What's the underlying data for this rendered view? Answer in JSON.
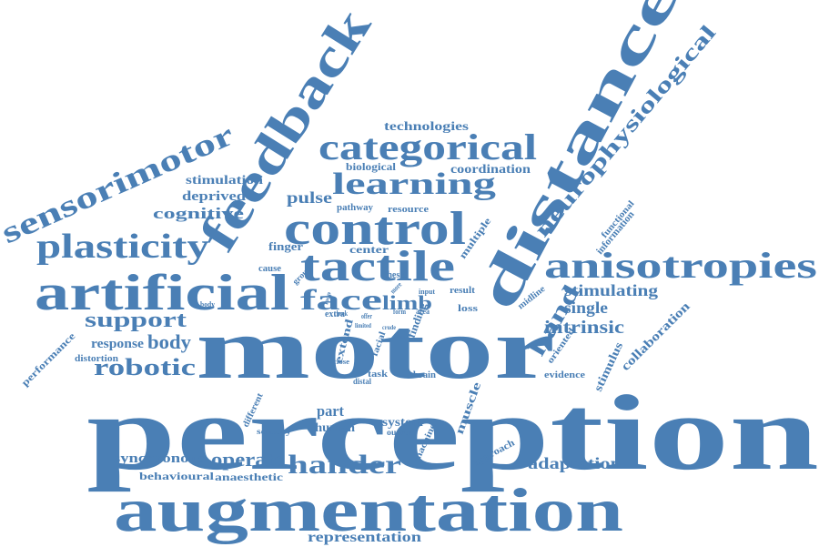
{
  "cloud": {
    "color": "#4a7fb5",
    "words": [
      "perception",
      "motor",
      "augmentation",
      "distance",
      "feedback",
      "control",
      "artificial",
      "tactile",
      "categorical",
      "anisotropies",
      "sensorimotor",
      "neurophysiological",
      "plasticity",
      "learning",
      "face",
      "hander",
      "robotic",
      "support",
      "hand",
      "body",
      "intrinsic",
      "limb",
      "adaptation",
      "operate",
      "single",
      "stimulating",
      "representation",
      "synchronous",
      "cognitive",
      "pulse",
      "deprived",
      "stimulation",
      "technologies",
      "biological",
      "coordination",
      "response",
      "collaboration",
      "stimulus",
      "part",
      "human",
      "system",
      "behavioural",
      "anaesthetic",
      "performance",
      "distortion",
      "evidence",
      "finger",
      "center",
      "pathway",
      "resource",
      "muscle",
      "approach",
      "information",
      "functional",
      "multiple",
      "oriented",
      "machine",
      "brain",
      "task",
      "cause",
      "group",
      "thesis",
      "extend",
      "finding",
      "result",
      "loss",
      "extra",
      "midline",
      "different",
      "sensory",
      "output",
      "facial",
      "close",
      "distal",
      "area",
      "offer",
      "input",
      "form",
      "cheek",
      "more",
      "loop",
      "pole",
      "body",
      "crude",
      "limited"
    ]
  }
}
